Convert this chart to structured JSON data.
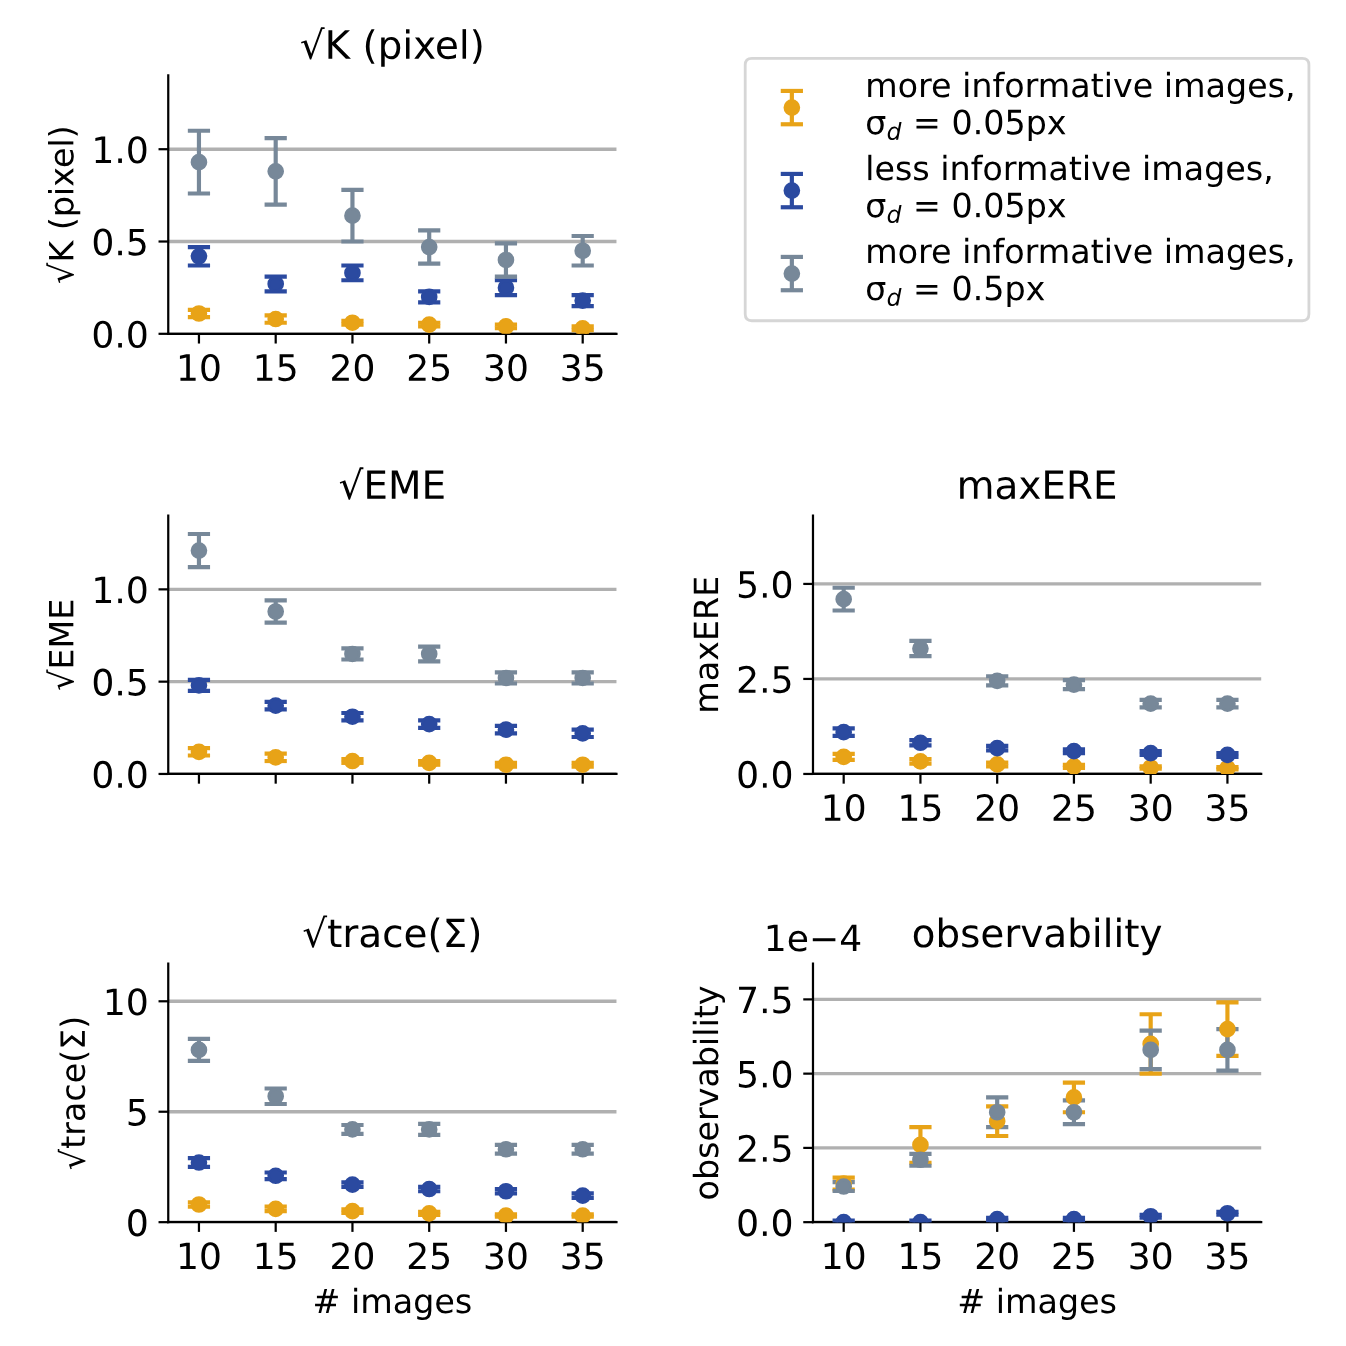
{
  "chart_data": [
    {
      "type": "scatter",
      "title": "√K (pixel)",
      "ylabel": "√K (pixel)",
      "x": [
        10,
        15,
        20,
        25,
        30,
        35
      ],
      "xlim": [
        8,
        37.2
      ],
      "xticks": [
        10,
        15,
        20,
        25,
        30,
        35
      ],
      "ylim": [
        0,
        1.4
      ],
      "yticks": [
        {
          "value": 0,
          "label": "0.0"
        },
        0.5,
        {
          "value": 1,
          "label": "1.0"
        }
      ],
      "grid": "y",
      "marker": "circle",
      "legend": "right",
      "series": [
        {
          "name": "more informative images,\nσ$_{d}$ = 0.05px",
          "color": "#e8a317",
          "values": [
            0.11,
            0.08,
            0.06,
            0.05,
            0.04,
            0.03
          ],
          "errors": [
            0.02,
            0.02,
            0.01,
            0.01,
            0.01,
            0.01
          ]
        },
        {
          "name": "less informative images,\nσ$_{d}$ = 0.05px",
          "color": "#2b4aa0",
          "values": [
            0.42,
            0.27,
            0.33,
            0.2,
            0.25,
            0.18
          ],
          "errors": [
            0.05,
            0.04,
            0.04,
            0.03,
            0.04,
            0.03
          ]
        },
        {
          "name": "more informative images,\nσ$_{d}$ = 0.5px",
          "color": "#778899",
          "values": [
            0.93,
            0.88,
            0.64,
            0.47,
            0.4,
            0.45
          ],
          "errors": [
            0.17,
            0.18,
            0.14,
            0.09,
            0.09,
            0.08
          ]
        }
      ]
    },
    {
      "type": "scatter",
      "title": "√EME",
      "ylabel": "√EME",
      "x": [
        10,
        15,
        20,
        25,
        30,
        35
      ],
      "xlim": [
        8,
        37.2
      ],
      "xticks": [
        10,
        15,
        20,
        25,
        30,
        35
      ],
      "ylim": [
        0,
        1.4
      ],
      "yticks": [
        {
          "value": 0,
          "label": "0.0"
        },
        0.5,
        {
          "value": 1,
          "label": "1.0"
        }
      ],
      "grid": "y",
      "marker": "circle",
      "tick_labels": "y",
      "series": [
        {
          "color": "#e8a317",
          "values": [
            0.12,
            0.09,
            0.07,
            0.06,
            0.05,
            0.05
          ],
          "errors": [
            0.02,
            0.02,
            0.01,
            0.01,
            0.01,
            0.01
          ]
        },
        {
          "color": "#2b4aa0",
          "values": [
            0.48,
            0.37,
            0.31,
            0.27,
            0.24,
            0.22
          ],
          "errors": [
            0.03,
            0.02,
            0.02,
            0.02,
            0.02,
            0.02
          ]
        },
        {
          "color": "#778899",
          "values": [
            1.21,
            0.88,
            0.65,
            0.65,
            0.52,
            0.52
          ],
          "errors": [
            0.09,
            0.06,
            0.03,
            0.04,
            0.03,
            0.03
          ]
        }
      ]
    },
    {
      "type": "scatter",
      "title": "maxERE",
      "ylabel": "maxERE",
      "x": [
        10,
        15,
        20,
        25,
        30,
        35
      ],
      "xlim": [
        8,
        37.2
      ],
      "xticks": [
        10,
        15,
        20,
        25,
        30,
        35
      ],
      "ylim": [
        0,
        6.8
      ],
      "yticks": [
        {
          "value": 0,
          "label": "0.0"
        },
        2.5,
        {
          "value": 5,
          "label": "5.0"
        }
      ],
      "grid": "y",
      "marker": "circle",
      "series": [
        {
          "color": "#e8a317",
          "values": [
            0.45,
            0.33,
            0.25,
            0.2,
            0.17,
            0.15
          ],
          "errors": [
            0.08,
            0.06,
            0.05,
            0.04,
            0.03,
            0.03
          ]
        },
        {
          "color": "#2b4aa0",
          "values": [
            1.1,
            0.82,
            0.68,
            0.6,
            0.55,
            0.5
          ],
          "errors": [
            0.1,
            0.07,
            0.06,
            0.05,
            0.05,
            0.05
          ]
        },
        {
          "color": "#778899",
          "values": [
            4.6,
            3.3,
            2.45,
            2.35,
            1.85,
            1.85
          ],
          "errors": [
            0.3,
            0.2,
            0.12,
            0.12,
            0.1,
            0.1
          ]
        }
      ]
    },
    {
      "type": "scatter",
      "title": "√trace(Σ)",
      "ylabel": "√trace(Σ)",
      "xlabel": "# images",
      "x": [
        10,
        15,
        20,
        25,
        30,
        35
      ],
      "xlim": [
        8,
        37.2
      ],
      "xticks": [
        10,
        15,
        20,
        25,
        30,
        35
      ],
      "ylim": [
        0,
        11.7
      ],
      "yticks": [
        0,
        5,
        10
      ],
      "grid": "y",
      "marker": "circle",
      "series": [
        {
          "color": "#e8a317",
          "values": [
            0.8,
            0.6,
            0.5,
            0.4,
            0.3,
            0.3
          ],
          "errors": [
            0.1,
            0.1,
            0.08,
            0.07,
            0.05,
            0.05
          ]
        },
        {
          "color": "#2b4aa0",
          "values": [
            2.7,
            2.1,
            1.7,
            1.5,
            1.4,
            1.2
          ],
          "errors": [
            0.2,
            0.15,
            0.1,
            0.1,
            0.1,
            0.1
          ]
        },
        {
          "color": "#778899",
          "values": [
            7.8,
            5.7,
            4.2,
            4.2,
            3.3,
            3.3
          ],
          "errors": [
            0.5,
            0.35,
            0.2,
            0.25,
            0.2,
            0.2
          ]
        }
      ]
    },
    {
      "type": "scatter",
      "title": "observability",
      "ylabel": "observability",
      "xlabel": "# images",
      "annotations": [
        "1e−4"
      ],
      "x": [
        10,
        15,
        20,
        25,
        30,
        35
      ],
      "xlim": [
        8,
        37.2
      ],
      "xticks": [
        10,
        15,
        20,
        25,
        30,
        35
      ],
      "ylim": [
        0,
        8.7
      ],
      "yticks": [
        {
          "value": 0,
          "label": "0.0"
        },
        2.5,
        {
          "value": 5,
          "label": "5.0"
        },
        7.5
      ],
      "grid": "y",
      "marker": "circle",
      "series": [
        {
          "color": "#2b4aa0",
          "values": [
            0.0,
            0.0,
            0.1,
            0.1,
            0.2,
            0.3
          ],
          "errors": [
            0.05,
            0.05,
            0.05,
            0.05,
            0.05,
            0.05
          ]
        },
        {
          "color": "#e8a317",
          "values": [
            1.3,
            2.6,
            3.4,
            4.2,
            6.0,
            6.5
          ],
          "errors": [
            0.2,
            0.6,
            0.5,
            0.5,
            1.0,
            0.9
          ]
        },
        {
          "color": "#778899",
          "values": [
            1.2,
            2.1,
            3.7,
            3.7,
            5.8,
            5.8
          ],
          "errors": [
            0.15,
            0.2,
            0.5,
            0.4,
            0.65,
            0.7
          ]
        }
      ]
    }
  ]
}
